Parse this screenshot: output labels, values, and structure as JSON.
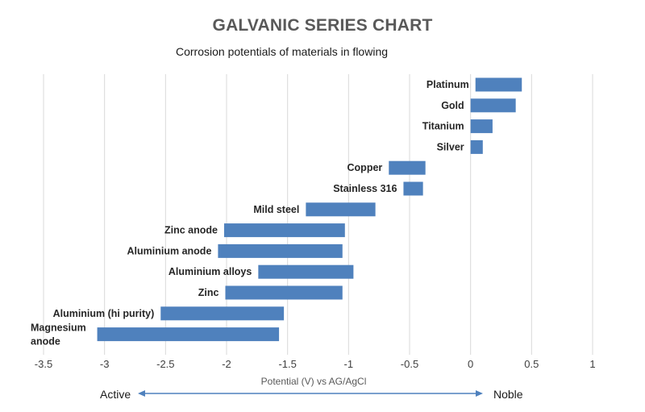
{
  "chart_data": {
    "type": "bar",
    "orientation": "horizontal-floating",
    "title": "GALVANIC SERIES CHART",
    "subtitle": "Corrosion potentials of materials in flowing",
    "xlabel": "Potential (V) vs AG/AgCl",
    "xlim": [
      -3.5,
      1
    ],
    "xticks": [
      "-3.5",
      "-3",
      "-2.5",
      "-2",
      "-1.5",
      "-1",
      "-0.5",
      "0",
      "0.5",
      "1"
    ],
    "grid": true,
    "bar_color": "#4f81bd",
    "categories": [
      {
        "label": "Platinum",
        "lines": [
          "Platinum"
        ],
        "start": 0.04,
        "end": 0.42
      },
      {
        "label": "Gold",
        "lines": [
          "Gold"
        ],
        "start": 0.0,
        "end": 0.37
      },
      {
        "label": "Titanium",
        "lines": [
          "Titanium"
        ],
        "start": 0.0,
        "end": 0.18
      },
      {
        "label": "Silver",
        "lines": [
          "Silver"
        ],
        "start": 0.0,
        "end": 0.1
      },
      {
        "label": "Copper",
        "lines": [
          "Copper"
        ],
        "start": -0.67,
        "end": -0.37
      },
      {
        "label": "Stainless 316",
        "lines": [
          "Stainless 316"
        ],
        "start": -0.55,
        "end": -0.39
      },
      {
        "label": "Mild steel",
        "lines": [
          "Mild steel"
        ],
        "start": -1.35,
        "end": -0.78
      },
      {
        "label": "Zinc anode",
        "lines": [
          "Zinc anode"
        ],
        "start": -2.02,
        "end": -1.03
      },
      {
        "label": "Aluminium anode",
        "lines": [
          "Aluminium anode"
        ],
        "start": -2.07,
        "end": -1.05
      },
      {
        "label": "Aluminium alloys",
        "lines": [
          "Aluminium alloys"
        ],
        "start": -1.74,
        "end": -0.96
      },
      {
        "label": "Zinc",
        "lines": [
          "Zinc"
        ],
        "start": -2.01,
        "end": -1.05
      },
      {
        "label": "Aluminium (hi purity)",
        "lines": [
          "Aluminium (hi purity)"
        ],
        "start": -2.54,
        "end": -1.53
      },
      {
        "label": "Magnesium anode",
        "lines": [
          "Magnesium",
          "anode"
        ],
        "start": -3.06,
        "end": -1.57
      }
    ],
    "annotation": {
      "left": "Active",
      "right": "Noble"
    }
  }
}
